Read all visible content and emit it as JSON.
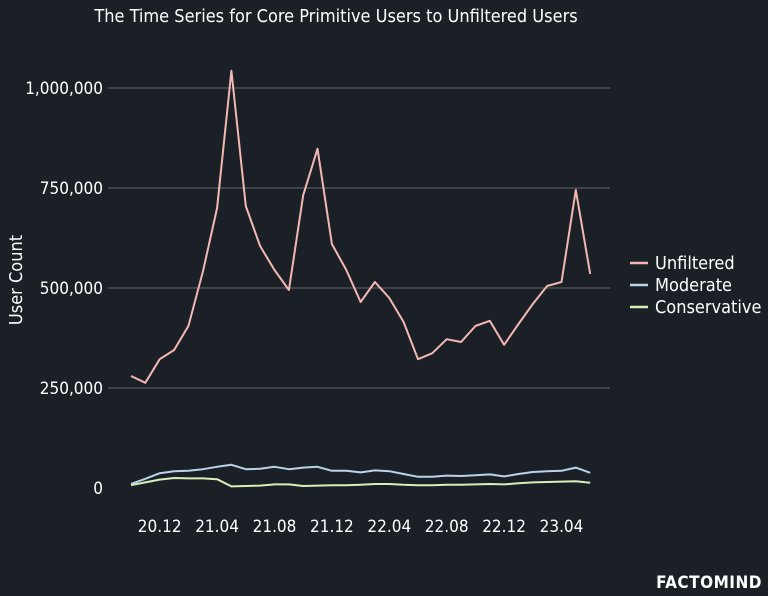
{
  "chart_data": {
    "type": "line",
    "title": "The Time Series for Core Primitive Users to Unfiltered Users",
    "ylabel": "User Count",
    "xlabel": "",
    "ylim": [
      0,
      1050000
    ],
    "yticks": [
      0,
      250000,
      500000,
      750000,
      1000000
    ],
    "ytick_labels": [
      "0",
      "250,000",
      "500,000",
      "750,000",
      "1,000,000"
    ],
    "xtick_labels": [
      "20.12",
      "21.04",
      "21.08",
      "21.12",
      "22.04",
      "22.08",
      "22.12",
      "23.04"
    ],
    "legend_position": "right",
    "grid": "horizontal",
    "series": [
      {
        "name": "Unfiltered",
        "color": "#f4b8b4",
        "values": [
          280000,
          263000,
          322000,
          345000,
          405000,
          540000,
          700000,
          1043000,
          705000,
          605000,
          545000,
          495000,
          732000,
          848000,
          610000,
          545000,
          465000,
          515000,
          475000,
          415000,
          322000,
          337000,
          372000,
          365000,
          405000,
          418000,
          358000,
          410000,
          460000,
          505000,
          515000,
          745000,
          535000
        ]
      },
      {
        "name": "Moderate",
        "color": "#b9d3ea",
        "values": [
          10000,
          23000,
          37000,
          42000,
          43000,
          47000,
          53000,
          58000,
          47000,
          48000,
          53000,
          47000,
          51000,
          53000,
          43000,
          43000,
          39000,
          44000,
          42000,
          35000,
          28000,
          28000,
          31000,
          30000,
          32000,
          34000,
          29000,
          35000,
          40000,
          42000,
          43000,
          51000,
          38000
        ]
      },
      {
        "name": "Conservative",
        "color": "#d8f0b8",
        "values": [
          7000,
          14000,
          21000,
          25000,
          24000,
          24000,
          22000,
          4000,
          5000,
          6000,
          9000,
          9000,
          5000,
          6000,
          7000,
          7000,
          8000,
          10000,
          10000,
          8000,
          7000,
          7000,
          8000,
          8000,
          9000,
          10000,
          9000,
          12000,
          14000,
          15000,
          16000,
          17000,
          13000
        ]
      }
    ]
  },
  "brand": "FACTOMIND"
}
